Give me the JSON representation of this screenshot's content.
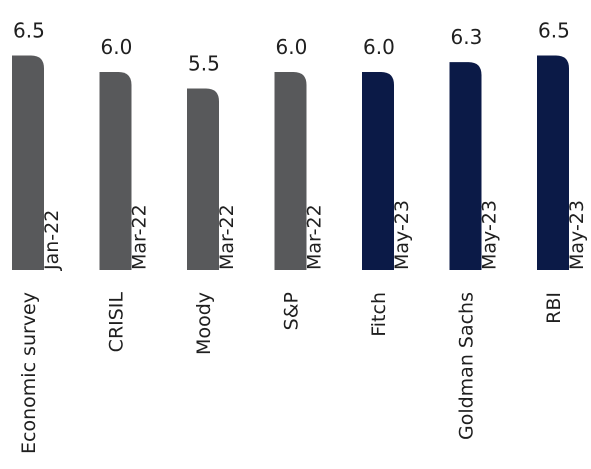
{
  "chart_data": {
    "type": "bar",
    "title": "",
    "xlabel": "",
    "ylabel": "",
    "ylim": [
      0,
      6.5
    ],
    "grid": false,
    "legend": "none",
    "categories": [
      "Economic survey",
      "CRISIL",
      "Moody",
      "S&P",
      "Fitch",
      "Goldman Sachs",
      "RBI"
    ],
    "dates": [
      "Jan-22",
      "Mar-22",
      "Mar-22",
      "Mar-22",
      "May-23",
      "May-23",
      "May-23"
    ],
    "values": [
      6.5,
      6.0,
      5.5,
      6.0,
      6.0,
      6.3,
      6.5
    ],
    "value_labels": [
      "6.5",
      "6.0",
      "5.5",
      "6.0",
      "6.0",
      "6.3",
      "6.5"
    ],
    "colors": [
      "#58595b",
      "#58595b",
      "#58595b",
      "#58595b",
      "#0b1a47",
      "#0b1a47",
      "#0b1a47"
    ]
  }
}
